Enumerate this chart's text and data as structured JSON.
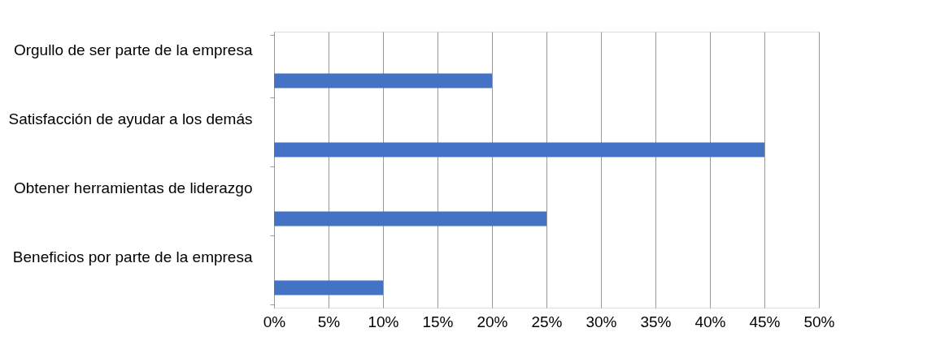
{
  "chart_data": {
    "type": "bar",
    "orientation": "horizontal",
    "categories": [
      "Orgullo de ser parte de la empresa",
      "Satisfacción de ayudar a los demás",
      "Obtener herramientas de liderazgo",
      "Beneficios por parte de la empresa"
    ],
    "values": [
      20,
      45,
      25,
      10
    ],
    "color": "#4472c4",
    "xlim": [
      0,
      50
    ],
    "xticks": [
      {
        "value": 0,
        "label": "0%"
      },
      {
        "value": 5,
        "label": "5%"
      },
      {
        "value": 10,
        "label": "10%"
      },
      {
        "value": 15,
        "label": "15%"
      },
      {
        "value": 20,
        "label": "20%"
      },
      {
        "value": 25,
        "label": "25%"
      },
      {
        "value": 30,
        "label": "30%"
      },
      {
        "value": 35,
        "label": "35%"
      },
      {
        "value": 40,
        "label": "40%"
      },
      {
        "value": 45,
        "label": "45%"
      },
      {
        "value": 50,
        "label": "50%"
      }
    ],
    "grid": "x",
    "legend": false
  }
}
